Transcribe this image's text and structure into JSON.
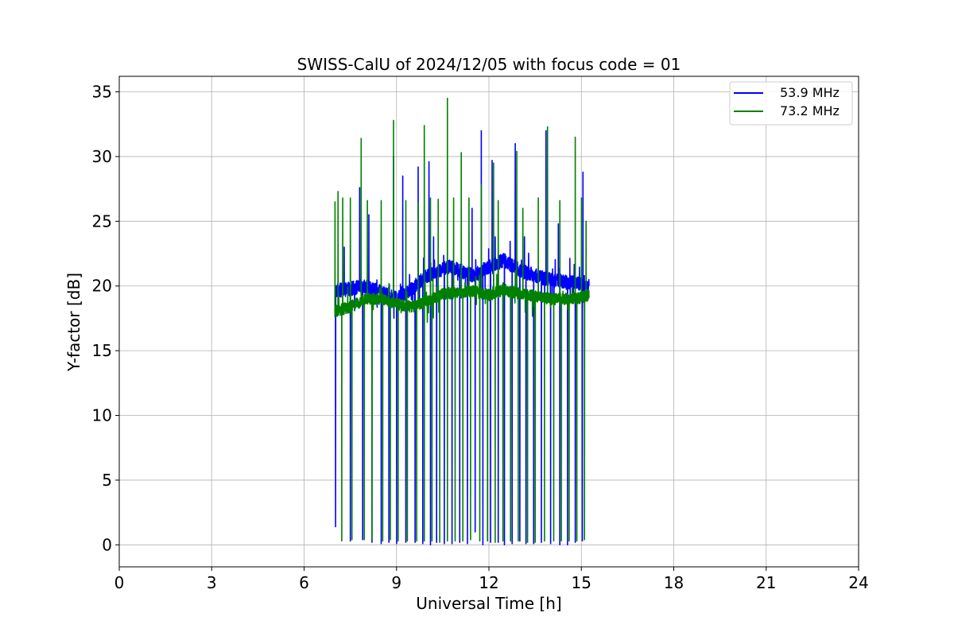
{
  "chart_data": {
    "type": "line",
    "title": "SWISS-CalU of 2024/12/05 with focus code = 01",
    "xlabel": "Universal Time [h]",
    "ylabel": "Y-factor [dB]",
    "xlim": [
      0,
      24
    ],
    "ylim": [
      -1.7,
      36.2
    ],
    "xticks": [
      0,
      3,
      6,
      9,
      12,
      15,
      18,
      21,
      24
    ],
    "xtick_labels": [
      "0",
      "3",
      "6",
      "9",
      "12",
      "15",
      "18",
      "21",
      "24"
    ],
    "yticks": [
      0,
      5,
      10,
      15,
      20,
      25,
      30,
      35
    ],
    "ytick_labels": [
      "0",
      "5",
      "10",
      "15",
      "20",
      "25",
      "30",
      "35"
    ],
    "grid": true,
    "legend_position": "top-right",
    "time_range_h": [
      7.0,
      15.25
    ],
    "series": [
      {
        "name": "53.9 MHz",
        "color": "#0000ff",
        "baseline": [
          [
            7.0,
            19.6
          ],
          [
            8.0,
            20.0
          ],
          [
            8.5,
            19.5
          ],
          [
            9.0,
            19.0
          ],
          [
            9.5,
            19.8
          ],
          [
            10.0,
            20.8
          ],
          [
            10.7,
            21.5
          ],
          [
            11.5,
            20.8
          ],
          [
            12.0,
            21.5
          ],
          [
            12.5,
            22.0
          ],
          [
            13.0,
            21.2
          ],
          [
            13.5,
            20.8
          ],
          [
            14.0,
            20.5
          ],
          [
            14.5,
            20.3
          ],
          [
            15.0,
            20.2
          ],
          [
            15.25,
            20.0
          ]
        ],
        "noise": 0.55,
        "spikes": [
          [
            7.12,
            20.0
          ],
          [
            7.3,
            23.0
          ],
          [
            7.8,
            27.6
          ],
          [
            8.1,
            25.5
          ],
          [
            8.9,
            30.0
          ],
          [
            9.2,
            28.5
          ],
          [
            9.7,
            29.2
          ],
          [
            10.05,
            29.6
          ],
          [
            10.2,
            23.8
          ],
          [
            11.45,
            26.0
          ],
          [
            11.75,
            32.0
          ],
          [
            12.1,
            29.7
          ],
          [
            12.2,
            23.8
          ],
          [
            12.85,
            31.0
          ],
          [
            13.15,
            23.8
          ],
          [
            13.85,
            32.0
          ],
          [
            14.25,
            24.8
          ],
          [
            15.05,
            28.8
          ]
        ],
        "dips": [
          [
            7.02,
            1.4
          ],
          [
            7.5,
            0.3
          ],
          [
            7.9,
            0.4
          ],
          [
            8.2,
            0.2
          ],
          [
            8.5,
            0.1
          ],
          [
            8.75,
            0.2
          ],
          [
            9.0,
            0.1
          ],
          [
            9.3,
            0.2
          ],
          [
            9.6,
            0.2
          ],
          [
            9.85,
            0.1
          ],
          [
            10.1,
            0.0
          ],
          [
            10.3,
            0.2
          ],
          [
            10.55,
            0.1
          ],
          [
            10.8,
            0.1
          ],
          [
            11.05,
            0.2
          ],
          [
            11.3,
            0.1
          ],
          [
            11.55,
            1.0
          ],
          [
            11.8,
            0.0
          ],
          [
            12.05,
            0.2
          ],
          [
            12.3,
            0.2
          ],
          [
            12.5,
            0.0
          ],
          [
            12.75,
            0.1
          ],
          [
            13.0,
            0.3
          ],
          [
            13.2,
            0.1
          ],
          [
            13.45,
            0.1
          ],
          [
            13.7,
            0.2
          ],
          [
            14.0,
            0.1
          ],
          [
            14.3,
            0.0
          ],
          [
            14.55,
            0.0
          ],
          [
            14.8,
            0.2
          ],
          [
            15.03,
            0.3
          ]
        ]
      },
      {
        "name": "73.2 MHz",
        "color": "#008000",
        "baseline": [
          [
            7.0,
            18.0
          ],
          [
            7.5,
            18.4
          ],
          [
            8.0,
            19.0
          ],
          [
            8.5,
            19.0
          ],
          [
            9.0,
            18.6
          ],
          [
            9.5,
            18.4
          ],
          [
            10.0,
            18.8
          ],
          [
            10.5,
            19.4
          ],
          [
            11.0,
            19.5
          ],
          [
            11.5,
            19.6
          ],
          [
            12.0,
            19.3
          ],
          [
            12.5,
            19.7
          ],
          [
            13.0,
            19.4
          ],
          [
            13.5,
            19.2
          ],
          [
            14.0,
            19.0
          ],
          [
            14.5,
            19.0
          ],
          [
            15.0,
            19.1
          ],
          [
            15.25,
            19.3
          ]
        ],
        "noise": 0.45,
        "spikes": [
          [
            7.0,
            26.5
          ],
          [
            7.1,
            27.3
          ],
          [
            7.25,
            26.8
          ],
          [
            7.5,
            26.8
          ],
          [
            7.85,
            31.4
          ],
          [
            8.05,
            26.6
          ],
          [
            8.5,
            26.6
          ],
          [
            8.9,
            32.8
          ],
          [
            9.3,
            26.6
          ],
          [
            9.7,
            26.4
          ],
          [
            9.9,
            32.4
          ],
          [
            10.1,
            26.8
          ],
          [
            10.35,
            26.7
          ],
          [
            10.65,
            34.5
          ],
          [
            10.85,
            26.8
          ],
          [
            11.1,
            30.3
          ],
          [
            11.35,
            26.8
          ],
          [
            11.75,
            27.8
          ],
          [
            12.15,
            29.5
          ],
          [
            12.3,
            26.6
          ],
          [
            12.9,
            30.4
          ],
          [
            13.1,
            26.0
          ],
          [
            13.6,
            26.8
          ],
          [
            13.9,
            32.3
          ],
          [
            14.3,
            26.6
          ],
          [
            14.8,
            31.5
          ],
          [
            15.0,
            26.8
          ],
          [
            15.15,
            25.0
          ]
        ],
        "dips": [
          [
            7.22,
            0.3
          ],
          [
            7.55,
            0.4
          ],
          [
            7.95,
            0.4
          ],
          [
            8.2,
            0.4
          ],
          [
            8.55,
            0.3
          ],
          [
            8.8,
            0.4
          ],
          [
            9.05,
            0.3
          ],
          [
            9.35,
            0.3
          ],
          [
            9.65,
            0.3
          ],
          [
            9.9,
            0.3
          ],
          [
            10.15,
            0.3
          ],
          [
            10.4,
            0.2
          ],
          [
            10.65,
            0.3
          ],
          [
            10.9,
            0.3
          ],
          [
            11.15,
            0.3
          ],
          [
            11.4,
            0.4
          ],
          [
            11.7,
            0.3
          ],
          [
            11.95,
            0.3
          ],
          [
            12.2,
            0.2
          ],
          [
            12.45,
            0.3
          ],
          [
            12.7,
            0.3
          ],
          [
            12.95,
            0.3
          ],
          [
            13.25,
            0.2
          ],
          [
            13.5,
            0.2
          ],
          [
            13.8,
            0.3
          ],
          [
            14.1,
            0.3
          ],
          [
            14.35,
            0.3
          ],
          [
            14.6,
            0.3
          ],
          [
            14.85,
            0.3
          ],
          [
            15.1,
            0.4
          ]
        ]
      }
    ]
  }
}
